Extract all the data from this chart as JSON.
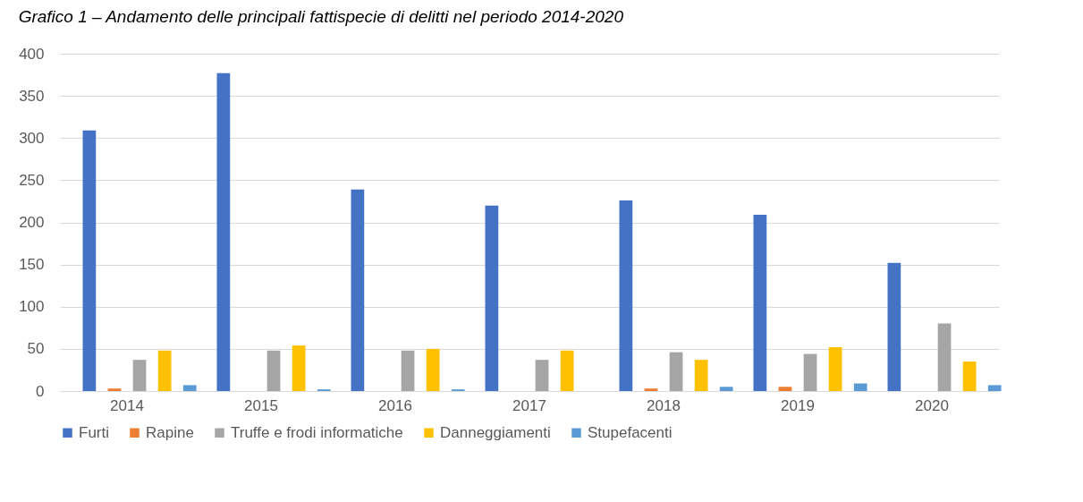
{
  "chart_data": {
    "type": "bar",
    "title": "Grafico 1 – Andamento delle principali fattispecie di delitti nel periodo 2014-2020",
    "categories": [
      "2014",
      "2015",
      "2016",
      "2017",
      "2018",
      "2019",
      "2020"
    ],
    "series": [
      {
        "name": "Furti",
        "color": "#4472c4",
        "values": [
          309,
          377,
          239,
          220,
          226,
          209,
          152
        ]
      },
      {
        "name": "Rapine",
        "color": "#ed7d31",
        "values": [
          3,
          0,
          0,
          0,
          3,
          5,
          0
        ]
      },
      {
        "name": "Truffe e frodi informatiche",
        "color": "#a5a5a5",
        "values": [
          37,
          48,
          48,
          37,
          46,
          44,
          80
        ]
      },
      {
        "name": "Danneggiamenti",
        "color": "#ffc000",
        "values": [
          48,
          54,
          50,
          48,
          37,
          52,
          35
        ]
      },
      {
        "name": "Stupefacenti",
        "color": "#5b9bd5",
        "values": [
          7,
          2,
          2,
          0,
          5,
          9,
          7
        ]
      }
    ],
    "ylim": [
      0,
      400
    ],
    "yticks": [
      0,
      50,
      100,
      150,
      200,
      250,
      300,
      350,
      400
    ],
    "grid": "y",
    "legend": "bottom"
  }
}
